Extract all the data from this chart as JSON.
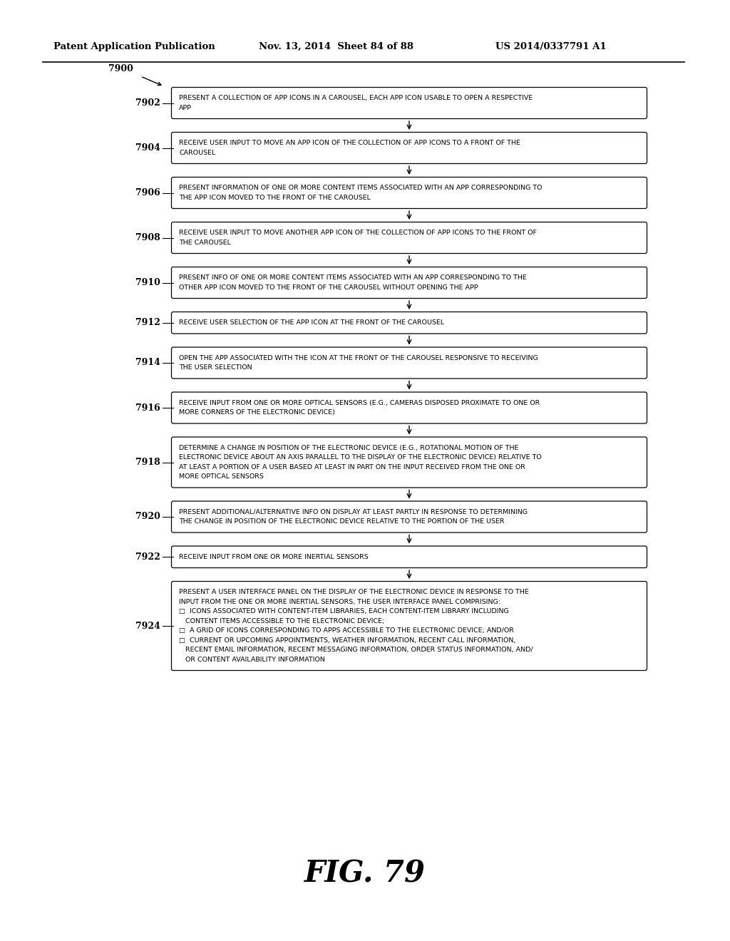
{
  "title_header": "Patent Application Publication",
  "title_date": "Nov. 13, 2014  Sheet 84 of 88",
  "title_patent": "US 2014/0337791 A1",
  "figure_label": "FIG. 79",
  "start_label": "7900",
  "background_color": "#ffffff",
  "box_edge_color": "#000000",
  "text_color": "#000000",
  "steps": [
    {
      "id": "7902",
      "lines": [
        "PRESENT A COLLECTION OF APP ICONS IN A CAROUSEL, EACH APP ICON USABLE TO OPEN A RESPECTIVE",
        "APP"
      ],
      "nlines": 2
    },
    {
      "id": "7904",
      "lines": [
        "RECEIVE USER INPUT TO MOVE AN APP ICON OF THE COLLECTION OF APP ICONS TO A FRONT OF THE",
        "CAROUSEL"
      ],
      "nlines": 2
    },
    {
      "id": "7906",
      "lines": [
        "PRESENT INFORMATION OF ONE OR MORE CONTENT ITEMS ASSOCIATED WITH AN APP CORRESPONDING TO",
        "THE APP ICON MOVED TO THE FRONT OF THE CAROUSEL"
      ],
      "nlines": 2
    },
    {
      "id": "7908",
      "lines": [
        "RECEIVE USER INPUT TO MOVE ANOTHER APP ICON OF THE COLLECTION OF APP ICONS TO THE FRONT OF",
        "THE CAROUSEL"
      ],
      "nlines": 2
    },
    {
      "id": "7910",
      "lines": [
        "PRESENT INFO OF ONE OR MORE CONTENT ITEMS ASSOCIATED WITH AN APP CORRESPONDING TO THE",
        "OTHER APP ICON MOVED TO THE FRONT OF THE CAROUSEL WITHOUT OPENING THE APP"
      ],
      "nlines": 2
    },
    {
      "id": "7912",
      "lines": [
        "RECEIVE USER SELECTION OF THE APP ICON AT THE FRONT OF THE CAROUSEL"
      ],
      "nlines": 1
    },
    {
      "id": "7914",
      "lines": [
        "OPEN THE APP ASSOCIATED WITH THE ICON AT THE FRONT OF THE CAROUSEL RESPONSIVE TO RECEIVING",
        "THE USER SELECTION"
      ],
      "nlines": 2
    },
    {
      "id": "7916",
      "lines": [
        "RECEIVE INPUT FROM ONE OR MORE OPTICAL SENSORS (E.G., CAMERAS DISPOSED PROXIMATE TO ONE OR",
        "MORE CORNERS OF THE ELECTRONIC DEVICE)"
      ],
      "nlines": 2
    },
    {
      "id": "7918",
      "lines": [
        "DETERMINE A CHANGE IN POSITION OF THE ELECTRONIC DEVICE (E.G., ROTATIONAL MOTION OF THE",
        "ELECTRONIC DEVICE ABOUT AN AXIS PARALLEL TO THE DISPLAY OF THE ELECTRONIC DEVICE) RELATIVE TO",
        "AT LEAST A PORTION OF A USER BASED AT LEAST IN PART ON THE INPUT RECEIVED FROM THE ONE OR",
        "MORE OPTICAL SENSORS"
      ],
      "nlines": 4
    },
    {
      "id": "7920",
      "lines": [
        "PRESENT ADDITIONAL/ALTERNATIVE INFO ON DISPLAY AT LEAST PARTLY IN RESPONSE TO DETERMINING",
        "THE CHANGE IN POSITION OF THE ELECTRONIC DEVICE RELATIVE TO THE PORTION OF THE USER"
      ],
      "nlines": 2
    },
    {
      "id": "7922",
      "lines": [
        "RECEIVE INPUT FROM ONE OR MORE INERTIAL SENSORS"
      ],
      "nlines": 1
    },
    {
      "id": "7924",
      "lines": [
        "PRESENT A USER INTERFACE PANEL ON THE DISPLAY OF THE ELECTRONIC DEVICE IN RESPONSE TO THE",
        "INPUT FROM THE ONE OR MORE INERTIAL SENSORS, THE USER INTERFACE PANEL COMPRISING:",
        "□  ICONS ASSOCIATED WITH CONTENT-ITEM LIBRARIES, EACH CONTENT-ITEM LIBRARY INCLUDING",
        "   CONTENT ITEMS ACCESSIBLE TO THE ELECTRONIC DEVICE;",
        "□  A GRID OF ICONS CORRESPONDING TO APPS ACCESSIBLE TO THE ELECTRONIC DEVICE; AND/OR",
        "□  CURRENT OR UPCOMING APPOINTMENTS, WEATHER INFORMATION, RECENT CALL INFORMATION,",
        "   RECENT EMAIL INFORMATION, RECENT MESSAGING INFORMATION, ORDER STATUS INFORMATION, AND/",
        "   OR CONTENT AVAILABILITY INFORMATION"
      ],
      "nlines": 8
    }
  ]
}
